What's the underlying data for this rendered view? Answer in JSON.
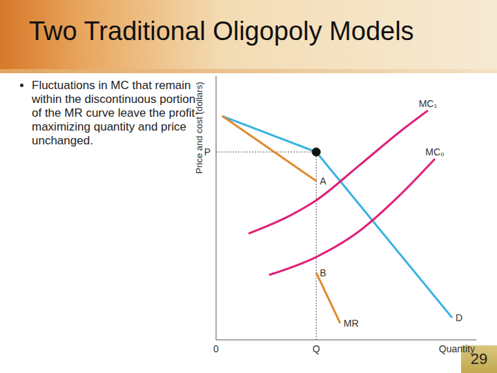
{
  "title": "Two Traditional Oligopoly Models",
  "bullets": [
    "Fluctuations in MC that remain within the discontinuous portion of the MR curve leave the profit-maximizing quantity and price unchanged."
  ],
  "page": 29,
  "chart_data": {
    "type": "line",
    "x_label": "Quantity",
    "y_label": "Price and cost (dollars)",
    "xlim": [
      0,
      10
    ],
    "ylim": [
      0,
      10
    ],
    "xticks": [
      0,
      {
        "value": 3.85,
        "label": "Q"
      }
    ],
    "yticks": [
      {
        "value": 7.12,
        "label": "P"
      }
    ],
    "grid": false,
    "series": [
      {
        "name": "D",
        "color": "#39b2e3",
        "x": [
          0.24,
          3.85,
          9.07
        ],
        "values": [
          8.48,
          7.12,
          0.84
        ]
      },
      {
        "name": "MR",
        "color": "#e08a2e",
        "x": [
          0.24,
          3.85,
          3.85,
          3.85,
          4.77
        ],
        "values": [
          8.48,
          6.02,
          null,
          2.54,
          0.63
        ]
      },
      {
        "name": "MC₁",
        "color": "#e0217a",
        "x": [
          1.25,
          2.84,
          3.85,
          5.49,
          7.08,
          8.14
        ],
        "values": [
          4.03,
          4.71,
          5.29,
          6.6,
          7.9,
          8.69
        ]
      },
      {
        "name": "MC₀",
        "color": "#e0217a",
        "x": [
          2.04,
          3.85,
          5.49,
          7.08,
          8.41
        ],
        "values": [
          2.46,
          3.14,
          4.11,
          5.5,
          6.86
        ]
      }
    ],
    "annotations": [
      {
        "text": "A",
        "x": 3.85,
        "y": 6.02
      },
      {
        "text": "B",
        "x": 3.85,
        "y": 2.54
      }
    ]
  }
}
